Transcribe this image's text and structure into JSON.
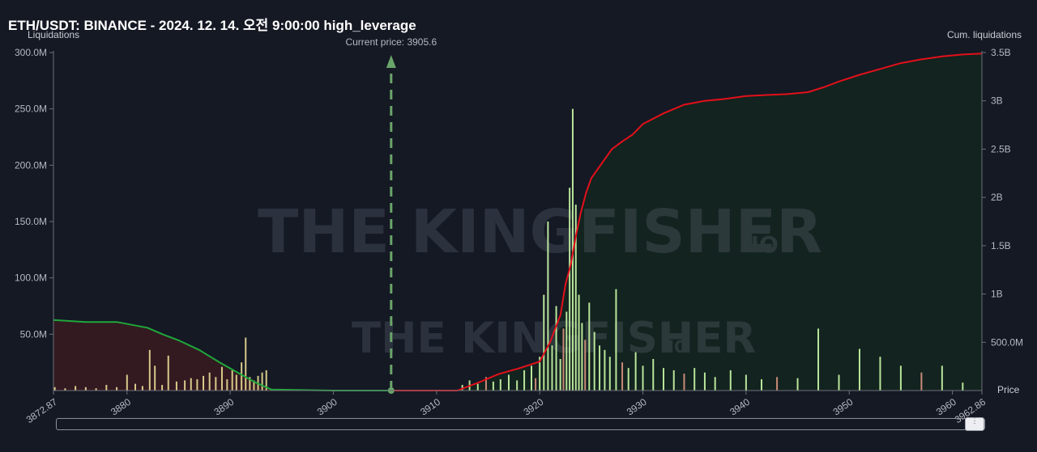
{
  "title": "ETH/USDT: BINANCE - 2024. 12. 14. 오전 9:00:00 high_leverage",
  "left_axis_title": "Liquidations",
  "right_axis_title": "Cum. liquidations",
  "price_axis_title": "Price",
  "current_price_label": "Current price: 3905.6",
  "watermark": {
    "main": "THE KINGFISHER",
    "suffix": ".IO"
  },
  "colors": {
    "background": "#151924",
    "long_bar": "#d8c98a",
    "short_bar": "#b9e59a",
    "short_bar_alt": "#c98a78",
    "long_cum_line": "#1fa83a",
    "long_cum_fill": "#3b1a20",
    "short_cum_line": "#e3101a",
    "short_cum_fill": "#13261f",
    "current_price_line": "#6aa56a"
  },
  "chart_data": {
    "type": "bar",
    "x_range": [
      3872.87,
      3962.86
    ],
    "x_ticks": [
      "3872.87",
      "3880",
      "3890",
      "3900",
      "3910",
      "3920",
      "3930",
      "3940",
      "3950",
      "3960",
      "3962.86"
    ],
    "x_tick_values": [
      3872.87,
      3880,
      3890,
      3900,
      3910,
      3920,
      3930,
      3940,
      3950,
      3960,
      3962.86
    ],
    "y_left": {
      "label": "Liquidations",
      "range": [
        0,
        300000000
      ],
      "ticks": [
        "50.0M",
        "100.0M",
        "150.0M",
        "200.0M",
        "250.0M",
        "300.0M"
      ],
      "tick_values": [
        50000000,
        100000000,
        150000000,
        200000000,
        250000000,
        300000000
      ]
    },
    "y_right": {
      "label": "Cum. liquidations",
      "range": [
        0,
        3500000000
      ],
      "ticks": [
        "500.0M",
        "1B",
        "1.5B",
        "2B",
        "2.5B",
        "3B",
        "3.5B"
      ],
      "tick_values": [
        500000000,
        1000000000,
        1500000000,
        2000000000,
        2500000000,
        3000000000,
        3500000000
      ]
    },
    "current_price": 3905.6,
    "long_liquidations": {
      "x": [
        3873.0,
        3874.0,
        3875.0,
        3876.0,
        3877.0,
        3878.0,
        3879.0,
        3880.0,
        3880.8,
        3881.5,
        3882.2,
        3882.7,
        3883.4,
        3884.0,
        3884.8,
        3885.6,
        3886.2,
        3886.8,
        3887.4,
        3888.0,
        3888.6,
        3889.2,
        3889.7,
        3890.2,
        3890.6,
        3891.1,
        3891.5,
        3891.9,
        3892.3,
        3892.7,
        3893.1,
        3893.5
      ],
      "values": [
        3000000,
        2000000,
        4000000,
        3000000,
        2000000,
        5000000,
        3000000,
        14000000,
        6000000,
        4000000,
        36000000,
        22000000,
        5000000,
        31000000,
        8000000,
        9000000,
        11000000,
        10000000,
        13000000,
        16000000,
        12000000,
        21000000,
        10000000,
        18000000,
        14000000,
        25000000,
        47000000,
        12000000,
        9000000,
        13000000,
        16000000,
        18000000
      ]
    },
    "short_liquidations": {
      "x": [
        3912.5,
        3913.2,
        3914.0,
        3914.8,
        3915.5,
        3916.2,
        3917.0,
        3917.8,
        3918.5,
        3919.2,
        3919.6,
        3920.0,
        3920.4,
        3920.8,
        3921.2,
        3921.6,
        3922.0,
        3922.3,
        3922.6,
        3922.9,
        3923.2,
        3923.5,
        3923.8,
        3924.1,
        3924.4,
        3924.8,
        3925.3,
        3925.8,
        3926.3,
        3926.8,
        3927.4,
        3928.0,
        3928.6,
        3929.3,
        3930.0,
        3931.0,
        3932.0,
        3933.0,
        3934.0,
        3935.0,
        3936.0,
        3937.0,
        3938.5,
        3940.0,
        3941.5,
        3943.0,
        3945.0,
        3947.0,
        3949.0,
        3951.0,
        3953.0,
        3955.0,
        3957.0,
        3959.0,
        3961.0
      ],
      "values": [
        5000000,
        9000000,
        6000000,
        12000000,
        8000000,
        10000000,
        14000000,
        9000000,
        18000000,
        22000000,
        11000000,
        30000000,
        85000000,
        150000000,
        40000000,
        75000000,
        28000000,
        55000000,
        70000000,
        180000000,
        250000000,
        165000000,
        85000000,
        60000000,
        45000000,
        78000000,
        52000000,
        40000000,
        36000000,
        30000000,
        90000000,
        25000000,
        20000000,
        34000000,
        22000000,
        28000000,
        20000000,
        18000000,
        15000000,
        20000000,
        16000000,
        12000000,
        18000000,
        14000000,
        10000000,
        12000000,
        11000000,
        55000000,
        14000000,
        37000000,
        30000000,
        22000000,
        16000000,
        22000000,
        7000000
      ]
    },
    "long_cumulative": {
      "x": [
        3872.87,
        3876,
        3879,
        3880.5,
        3882,
        3883.5,
        3885,
        3887,
        3889,
        3891,
        3892.5,
        3894,
        3900,
        3905.6
      ],
      "values": [
        730000000,
        710000000,
        710000000,
        680000000,
        650000000,
        580000000,
        520000000,
        420000000,
        290000000,
        170000000,
        80000000,
        10000000,
        0,
        0
      ]
    },
    "short_cumulative": {
      "x": [
        3905.6,
        3912,
        3914,
        3916,
        3918,
        3920,
        3921,
        3922,
        3922.5,
        3923,
        3923.5,
        3924,
        3924.5,
        3925,
        3926,
        3927,
        3928,
        3929,
        3930,
        3932,
        3934,
        3936,
        3938,
        3940,
        3942,
        3944,
        3946,
        3947.5,
        3949,
        3951,
        3953,
        3955,
        3957,
        3959,
        3961,
        3962.86
      ],
      "values": [
        0,
        0,
        80000000,
        170000000,
        230000000,
        300000000,
        500000000,
        780000000,
        1100000000,
        1300000000,
        1600000000,
        1850000000,
        2050000000,
        2200000000,
        2350000000,
        2500000000,
        2580000000,
        2650000000,
        2760000000,
        2870000000,
        2960000000,
        3000000000,
        3020000000,
        3050000000,
        3060000000,
        3070000000,
        3090000000,
        3140000000,
        3200000000,
        3270000000,
        3330000000,
        3390000000,
        3430000000,
        3460000000,
        3480000000,
        3490000000
      ]
    }
  }
}
